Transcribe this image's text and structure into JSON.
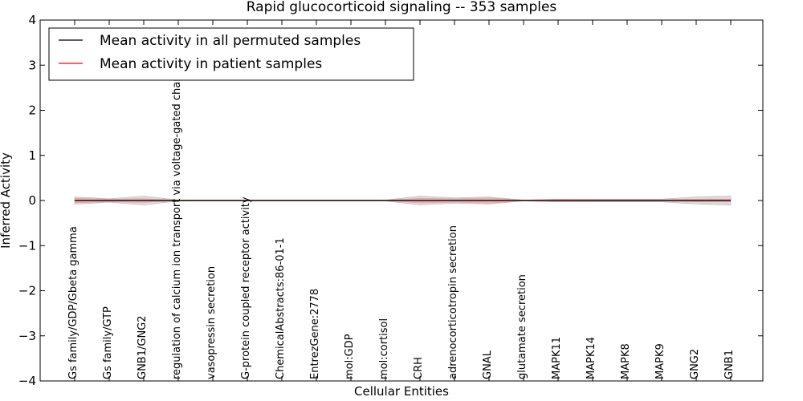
{
  "chart_data": {
    "type": "line",
    "title": "Rapid glucocorticoid signaling -- 353 samples",
    "xlabel": "Cellular Entities",
    "ylabel": "Inferred Activity",
    "ylim": [
      -4,
      4
    ],
    "yticks": [
      -4,
      -3,
      -2,
      -1,
      0,
      1,
      2,
      3,
      4
    ],
    "ytick_labels": [
      "−4",
      "−3",
      "−2",
      "−1",
      "0",
      "1",
      "2",
      "3",
      "4"
    ],
    "categories": [
      "Gs family/GDP/Gbeta gamma",
      "Gs family/GTP",
      "GNB1/GNG2",
      "regulation of calcium ion transport via voltage-gated channel",
      "vasopressin secretion",
      "G-protein coupled receptor activity",
      "ChemicalAbstracts:86-01-1",
      "EntrezGene:2778",
      "mol:GDP",
      "mol:cortisol",
      "CRH",
      "adrenocorticotropin secretion",
      "GNAL",
      "glutamate secretion",
      "MAPK11",
      "MAPK14",
      "MAPK8",
      "MAPK9",
      "GNG2",
      "GNB1"
    ],
    "series": [
      {
        "name": "Mean activity in all permuted samples",
        "color": "#000000",
        "values": [
          0,
          0,
          0,
          0,
          0,
          0,
          0,
          0,
          0,
          0,
          0,
          0,
          0,
          0,
          0,
          0,
          0,
          0,
          0,
          0
        ],
        "band": [
          0.08,
          0.04,
          0.1,
          0.01,
          0.01,
          0.01,
          0.01,
          0.01,
          0.01,
          0.01,
          0.1,
          0.06,
          0.08,
          0.01,
          0.03,
          0.03,
          0.03,
          0.03,
          0.08,
          0.1
        ],
        "band_color": "#bbbbbb"
      },
      {
        "name": "Mean activity in patient samples",
        "color": "#ff0000",
        "values": [
          0,
          0,
          0,
          0,
          0,
          0,
          0,
          0,
          0,
          0,
          0,
          0,
          0,
          0,
          0,
          0,
          0,
          0,
          0,
          0
        ],
        "band": [
          0.05,
          0.03,
          0.04,
          0.005,
          0.005,
          0.005,
          0.005,
          0.005,
          0.005,
          0.005,
          0.05,
          0.04,
          0.06,
          0.005,
          0.03,
          0.02,
          0.02,
          0.02,
          0.03,
          0.03
        ],
        "band_color": "#e8a0a0"
      }
    ],
    "legend": "top-left",
    "grid": false
  }
}
